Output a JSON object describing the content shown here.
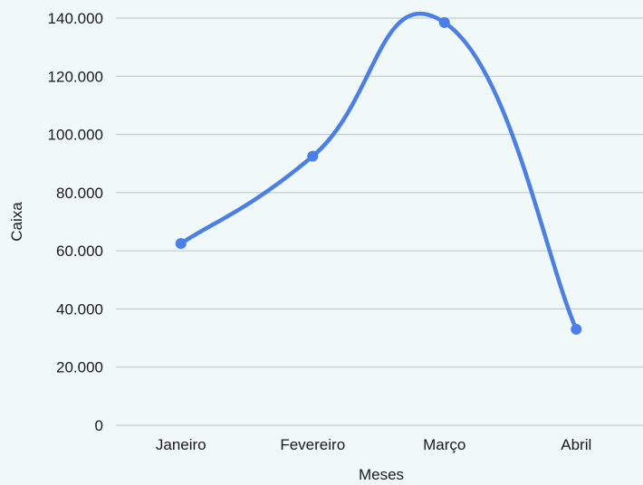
{
  "colors": {
    "background": "#f1f8f8",
    "series": "#4a7ee8",
    "grid": "#b9c4c6",
    "text": "#1a1a1a"
  },
  "chart_data": {
    "type": "line",
    "smooth": true,
    "categories": [
      "Janeiro",
      "Fevereiro",
      "Março",
      "Abril"
    ],
    "series": [
      {
        "name": "",
        "values": [
          62500,
          92500,
          138500,
          33000
        ]
      }
    ],
    "xlabel": "Meses",
    "ylabel": "Caixa",
    "ylim": [
      0,
      140000
    ],
    "yticks": [
      0,
      20000,
      40000,
      60000,
      80000,
      100000,
      120000,
      140000
    ],
    "ytick_labels": [
      "0",
      "20.000",
      "40.000",
      "60.000",
      "80.000",
      "100.000",
      "120.000",
      "140.000"
    ],
    "grid": true,
    "legend": "none",
    "markers": true
  }
}
